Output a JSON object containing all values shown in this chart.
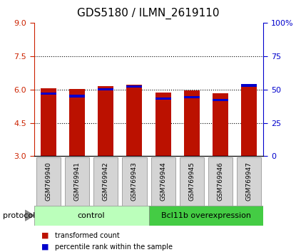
{
  "title": "GDS5180 / ILMN_2619110",
  "samples": [
    "GSM769940",
    "GSM769941",
    "GSM769942",
    "GSM769943",
    "GSM769944",
    "GSM769945",
    "GSM769946",
    "GSM769947"
  ],
  "transformed_counts": [
    6.05,
    6.03,
    6.15,
    6.22,
    5.85,
    5.95,
    5.83,
    6.24
  ],
  "percentile_ranks": [
    47,
    45,
    50,
    52,
    43,
    44,
    42,
    53
  ],
  "ylim_left": [
    3,
    9
  ],
  "ylim_right": [
    0,
    100
  ],
  "yticks_left": [
    3,
    4.5,
    6,
    7.5,
    9
  ],
  "yticks_right": [
    0,
    25,
    50,
    75,
    100
  ],
  "bar_bottom": 3.0,
  "bar_color_red": "#bb1100",
  "bar_color_blue": "#0000cc",
  "bg_color": "#ffffff",
  "plot_bg": "#ffffff",
  "groups": [
    {
      "label": "control",
      "start": 0,
      "end": 4,
      "color": "#bbffbb"
    },
    {
      "label": "Bcl11b overexpression",
      "start": 4,
      "end": 8,
      "color": "#44cc44"
    }
  ],
  "protocol_label": "protocol",
  "legend_items": [
    {
      "label": "transformed count",
      "color": "#bb1100"
    },
    {
      "label": "percentile rank within the sample",
      "color": "#0000cc"
    }
  ],
  "bar_width": 0.55,
  "title_fontsize": 11,
  "left_tick_color": "#cc2200",
  "right_tick_color": "#0000cc",
  "axis_label_fontsize": 8,
  "sample_fontsize": 6.5,
  "group_fontsize": 8
}
